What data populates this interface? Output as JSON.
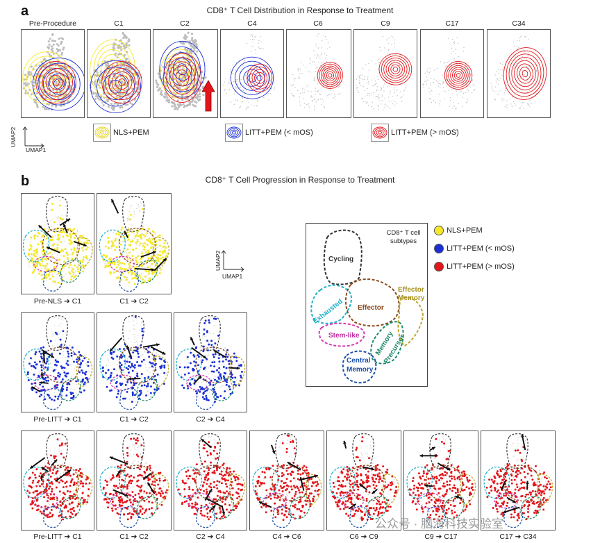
{
  "panel_a": {
    "letter": "a",
    "title": "CD8⁺ T Cell Distribution in Response to Treatment",
    "columns": [
      "Pre-Procedure",
      "C1",
      "C2",
      "C4",
      "C6",
      "C9",
      "C17",
      "C34"
    ],
    "legend": [
      "NLS+PEM",
      "LITT+PEM (< mOS)",
      "LITT+PEM (> mOS)"
    ],
    "axis_y": "UMAP2",
    "axis_x": "UMAP1"
  },
  "panel_b": {
    "letter": "b",
    "title": "CD8⁺ T Cell Progression in Response to Treatment",
    "row1_labels": [
      "Pre-NLS ➔ C1",
      "C1 ➔ C2"
    ],
    "row2_labels": [
      "Pre-LITT ➔ C1",
      "C1 ➔ C2",
      "C2 ➔ C4"
    ],
    "row3_labels": [
      "Pre-LITT ➔ C1",
      "C1 ➔ C2",
      "C2 ➔ C4",
      "C4 ➔ C6",
      "C6 ➔ C9",
      "C9 ➔ C17",
      "C17 ➔ C34"
    ],
    "axis_y": "UMAP2",
    "axis_x": "UMAP1",
    "diagram": {
      "title_line1": "CD8⁺ T cell",
      "title_line2": "subtypes",
      "subtypes": {
        "cycling": "Cycling",
        "exhausted": "Exhausted",
        "effector": "Effector",
        "effector_memory_1": "Effector",
        "effector_memory_2": "Memory",
        "stem_like": "Stem-like",
        "memory_precursor_1": "Memory",
        "memory_precursor_2": "Precursor",
        "central_memory_1": "Central",
        "central_memory_2": "Memory"
      }
    },
    "legend": [
      "NLS+PEM",
      "LITT+PEM (< mOS)",
      "LITT+PEM (> mOS)"
    ]
  },
  "colors": {
    "yellow": "#f5e82a",
    "blue": "#1a2fd6",
    "red": "#e3151a",
    "gray": "#bdbdbd"
  },
  "watermark": "公众号 · 脑海科技实验室"
}
